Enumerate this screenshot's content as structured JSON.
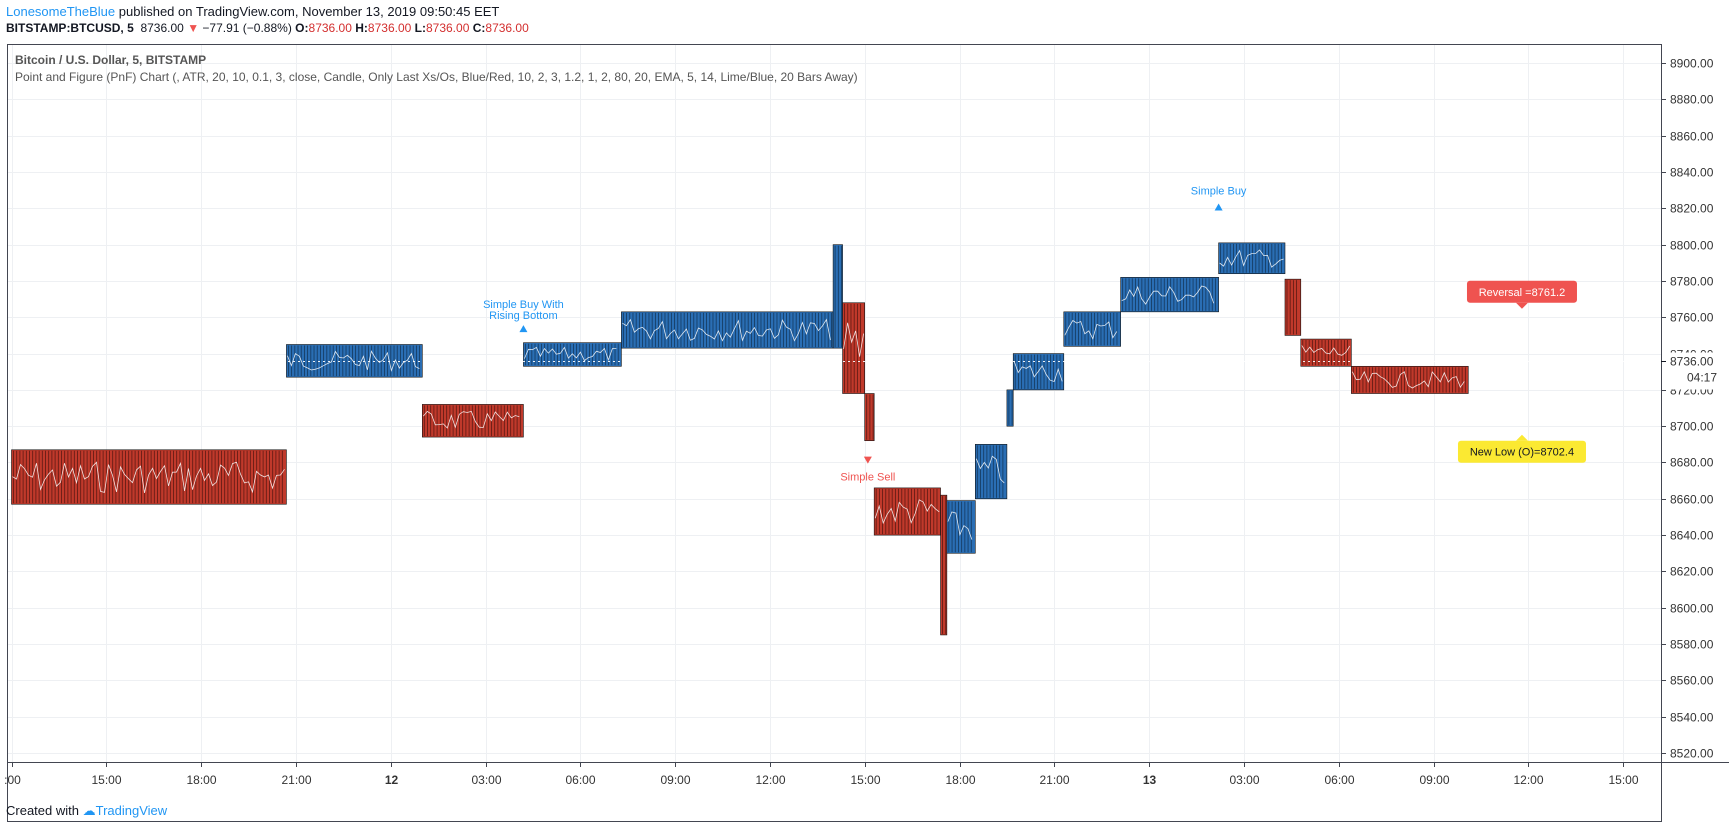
{
  "header": {
    "author": "LonesomeTheBlue",
    "published_text": " published on TradingView.com, November 13, 2019 09:50:45 EET",
    "symbol": "BITSTAMP:BTCUSD, 5",
    "last": "8736.00",
    "change": "−77.91 (−0.88%)",
    "o_label": "O:",
    "o_value": "8736.00",
    "h_label": "H:",
    "h_value": "8736.00",
    "l_label": "L:",
    "l_value": "8736.00",
    "c_label": "C:",
    "c_value": "8736.00"
  },
  "legend": {
    "title": "Bitcoin / U.S. Dollar, 5, BITSTAMP",
    "indicator": "Point and Figure (PnF) Chart (, ATR, 20, 10, 0.1, 3, close, Candle, Only Last Xs/Os, Blue/Red, 10, 2, 3, 1.2, 1, 2, 80, 20, EMA, 5, 14, Lime/Blue, 20 Bars Away)"
  },
  "footer": {
    "created_with": "Created with",
    "brand": "TradingView"
  },
  "colors": {
    "up": "#2a6eb4",
    "down": "#c0392b",
    "buy": "#2196f3",
    "sell": "#ef5350",
    "new_low_bg": "#fbe932",
    "reversal_bg": "#ef5350",
    "axis": "#333333"
  },
  "chart_data": {
    "type": "point-and-figure",
    "title": "Bitcoin / U.S. Dollar, 5, BITSTAMP",
    "ylim": [
      8515,
      8910
    ],
    "y_ticks": [
      8520,
      8540,
      8560,
      8580,
      8600,
      8620,
      8640,
      8660,
      8680,
      8700,
      8720,
      8740,
      8760,
      8780,
      8800,
      8820,
      8840,
      8860,
      8880,
      8900
    ],
    "x_ticks": [
      ":00",
      "15:00",
      "18:00",
      "21:00",
      "12",
      "03:00",
      "06:00",
      "09:00",
      "12:00",
      "15:00",
      "18:00",
      "21:00",
      "13",
      "03:00",
      "06:00",
      "09:00",
      "12:00",
      "15:00"
    ],
    "columns": [
      {
        "dir": "down",
        "top": 8687,
        "bottom": 8657,
        "from": 0,
        "to": 8.7
      },
      {
        "dir": "up",
        "top": 8745,
        "bottom": 8727,
        "from": 8.7,
        "to": 13.0
      },
      {
        "dir": "down",
        "top": 8712,
        "bottom": 8694,
        "from": 13.0,
        "to": 16.2
      },
      {
        "dir": "up",
        "top": 8746,
        "bottom": 8733,
        "from": 16.2,
        "to": 19.3
      },
      {
        "dir": "up",
        "top": 8763,
        "bottom": 8743,
        "from": 19.3,
        "to": 26.0
      },
      {
        "dir": "up",
        "top": 8800,
        "bottom": 8743,
        "from": 26.0,
        "to": 26.3
      },
      {
        "dir": "down",
        "top": 8768,
        "bottom": 8718,
        "from": 26.3,
        "to": 27.0
      },
      {
        "dir": "down",
        "top": 8718,
        "bottom": 8692,
        "from": 27.0,
        "to": 27.3
      },
      {
        "dir": "down",
        "top": 8666,
        "bottom": 8640,
        "from": 27.3,
        "to": 29.4
      },
      {
        "dir": "down",
        "top": 8662,
        "bottom": 8585,
        "from": 29.4,
        "to": 29.6
      },
      {
        "dir": "up",
        "top": 8659,
        "bottom": 8630,
        "from": 29.6,
        "to": 30.5
      },
      {
        "dir": "up",
        "top": 8690,
        "bottom": 8660,
        "from": 30.5,
        "to": 31.5
      },
      {
        "dir": "up",
        "top": 8720,
        "bottom": 8700,
        "from": 31.5,
        "to": 31.7
      },
      {
        "dir": "up",
        "top": 8740,
        "bottom": 8720,
        "from": 31.7,
        "to": 33.3
      },
      {
        "dir": "up",
        "top": 8763,
        "bottom": 8744,
        "from": 33.3,
        "to": 35.1
      },
      {
        "dir": "up",
        "top": 8782,
        "bottom": 8763,
        "from": 35.1,
        "to": 38.2
      },
      {
        "dir": "up",
        "top": 8801,
        "bottom": 8784,
        "from": 38.2,
        "to": 40.3
      },
      {
        "dir": "down",
        "top": 8781,
        "bottom": 8750,
        "from": 40.3,
        "to": 40.8
      },
      {
        "dir": "down",
        "top": 8748,
        "bottom": 8733,
        "from": 40.8,
        "to": 42.4
      },
      {
        "dir": "down",
        "top": 8733,
        "bottom": 8718,
        "from": 42.4,
        "to": 46.1
      }
    ],
    "signals": [
      {
        "type": "buy",
        "label": "Simple Buy With",
        "label2": "Rising Bottom",
        "x": 16.2,
        "y": 8754
      },
      {
        "type": "sell",
        "label": "Simple Sell",
        "label2": "",
        "x": 27.1,
        "y": 8681
      },
      {
        "type": "buy",
        "label": "Simple Buy",
        "label2": "",
        "x": 38.2,
        "y": 8821
      }
    ],
    "price_labels": [
      {
        "text": "Reversal =8761.2",
        "y": 8768,
        "x": 47.8,
        "style": "reversal"
      },
      {
        "text": "New Low (O)=8702.4",
        "y": 8692,
        "x": 47.8,
        "style": "newlow"
      }
    ],
    "last_price": {
      "value": "8736.00",
      "price": 8736,
      "countdown": "04:17"
    }
  }
}
